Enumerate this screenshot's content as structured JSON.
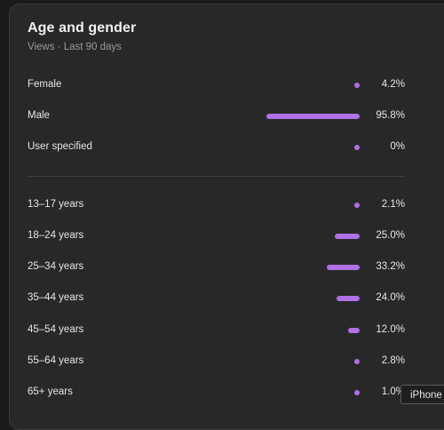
{
  "card": {
    "title": "Age and gender",
    "subtitle": "Views · Last 90 days"
  },
  "gender": [
    {
      "label": "Female",
      "value": 4.2,
      "display": "4.2%"
    },
    {
      "label": "Male",
      "value": 95.8,
      "display": "95.8%"
    },
    {
      "label": "User specified",
      "value": 0,
      "display": "0%"
    }
  ],
  "age": [
    {
      "label": "13–17 years",
      "value": 2.1,
      "display": "2.1%"
    },
    {
      "label": "18–24 years",
      "value": 25.0,
      "display": "25.0%"
    },
    {
      "label": "25–34 years",
      "value": 33.2,
      "display": "33.2%"
    },
    {
      "label": "35–44 years",
      "value": 24.0,
      "display": "24.0%"
    },
    {
      "label": "45–54 years",
      "value": 12.0,
      "display": "12.0%"
    },
    {
      "label": "55–64 years",
      "value": 2.8,
      "display": "2.8%"
    },
    {
      "label": "65+ years",
      "value": 1.0,
      "display": "1.0%"
    }
  ],
  "tooltip": {
    "text": "iPhone"
  },
  "colors": {
    "bar": "#b070e6"
  }
}
